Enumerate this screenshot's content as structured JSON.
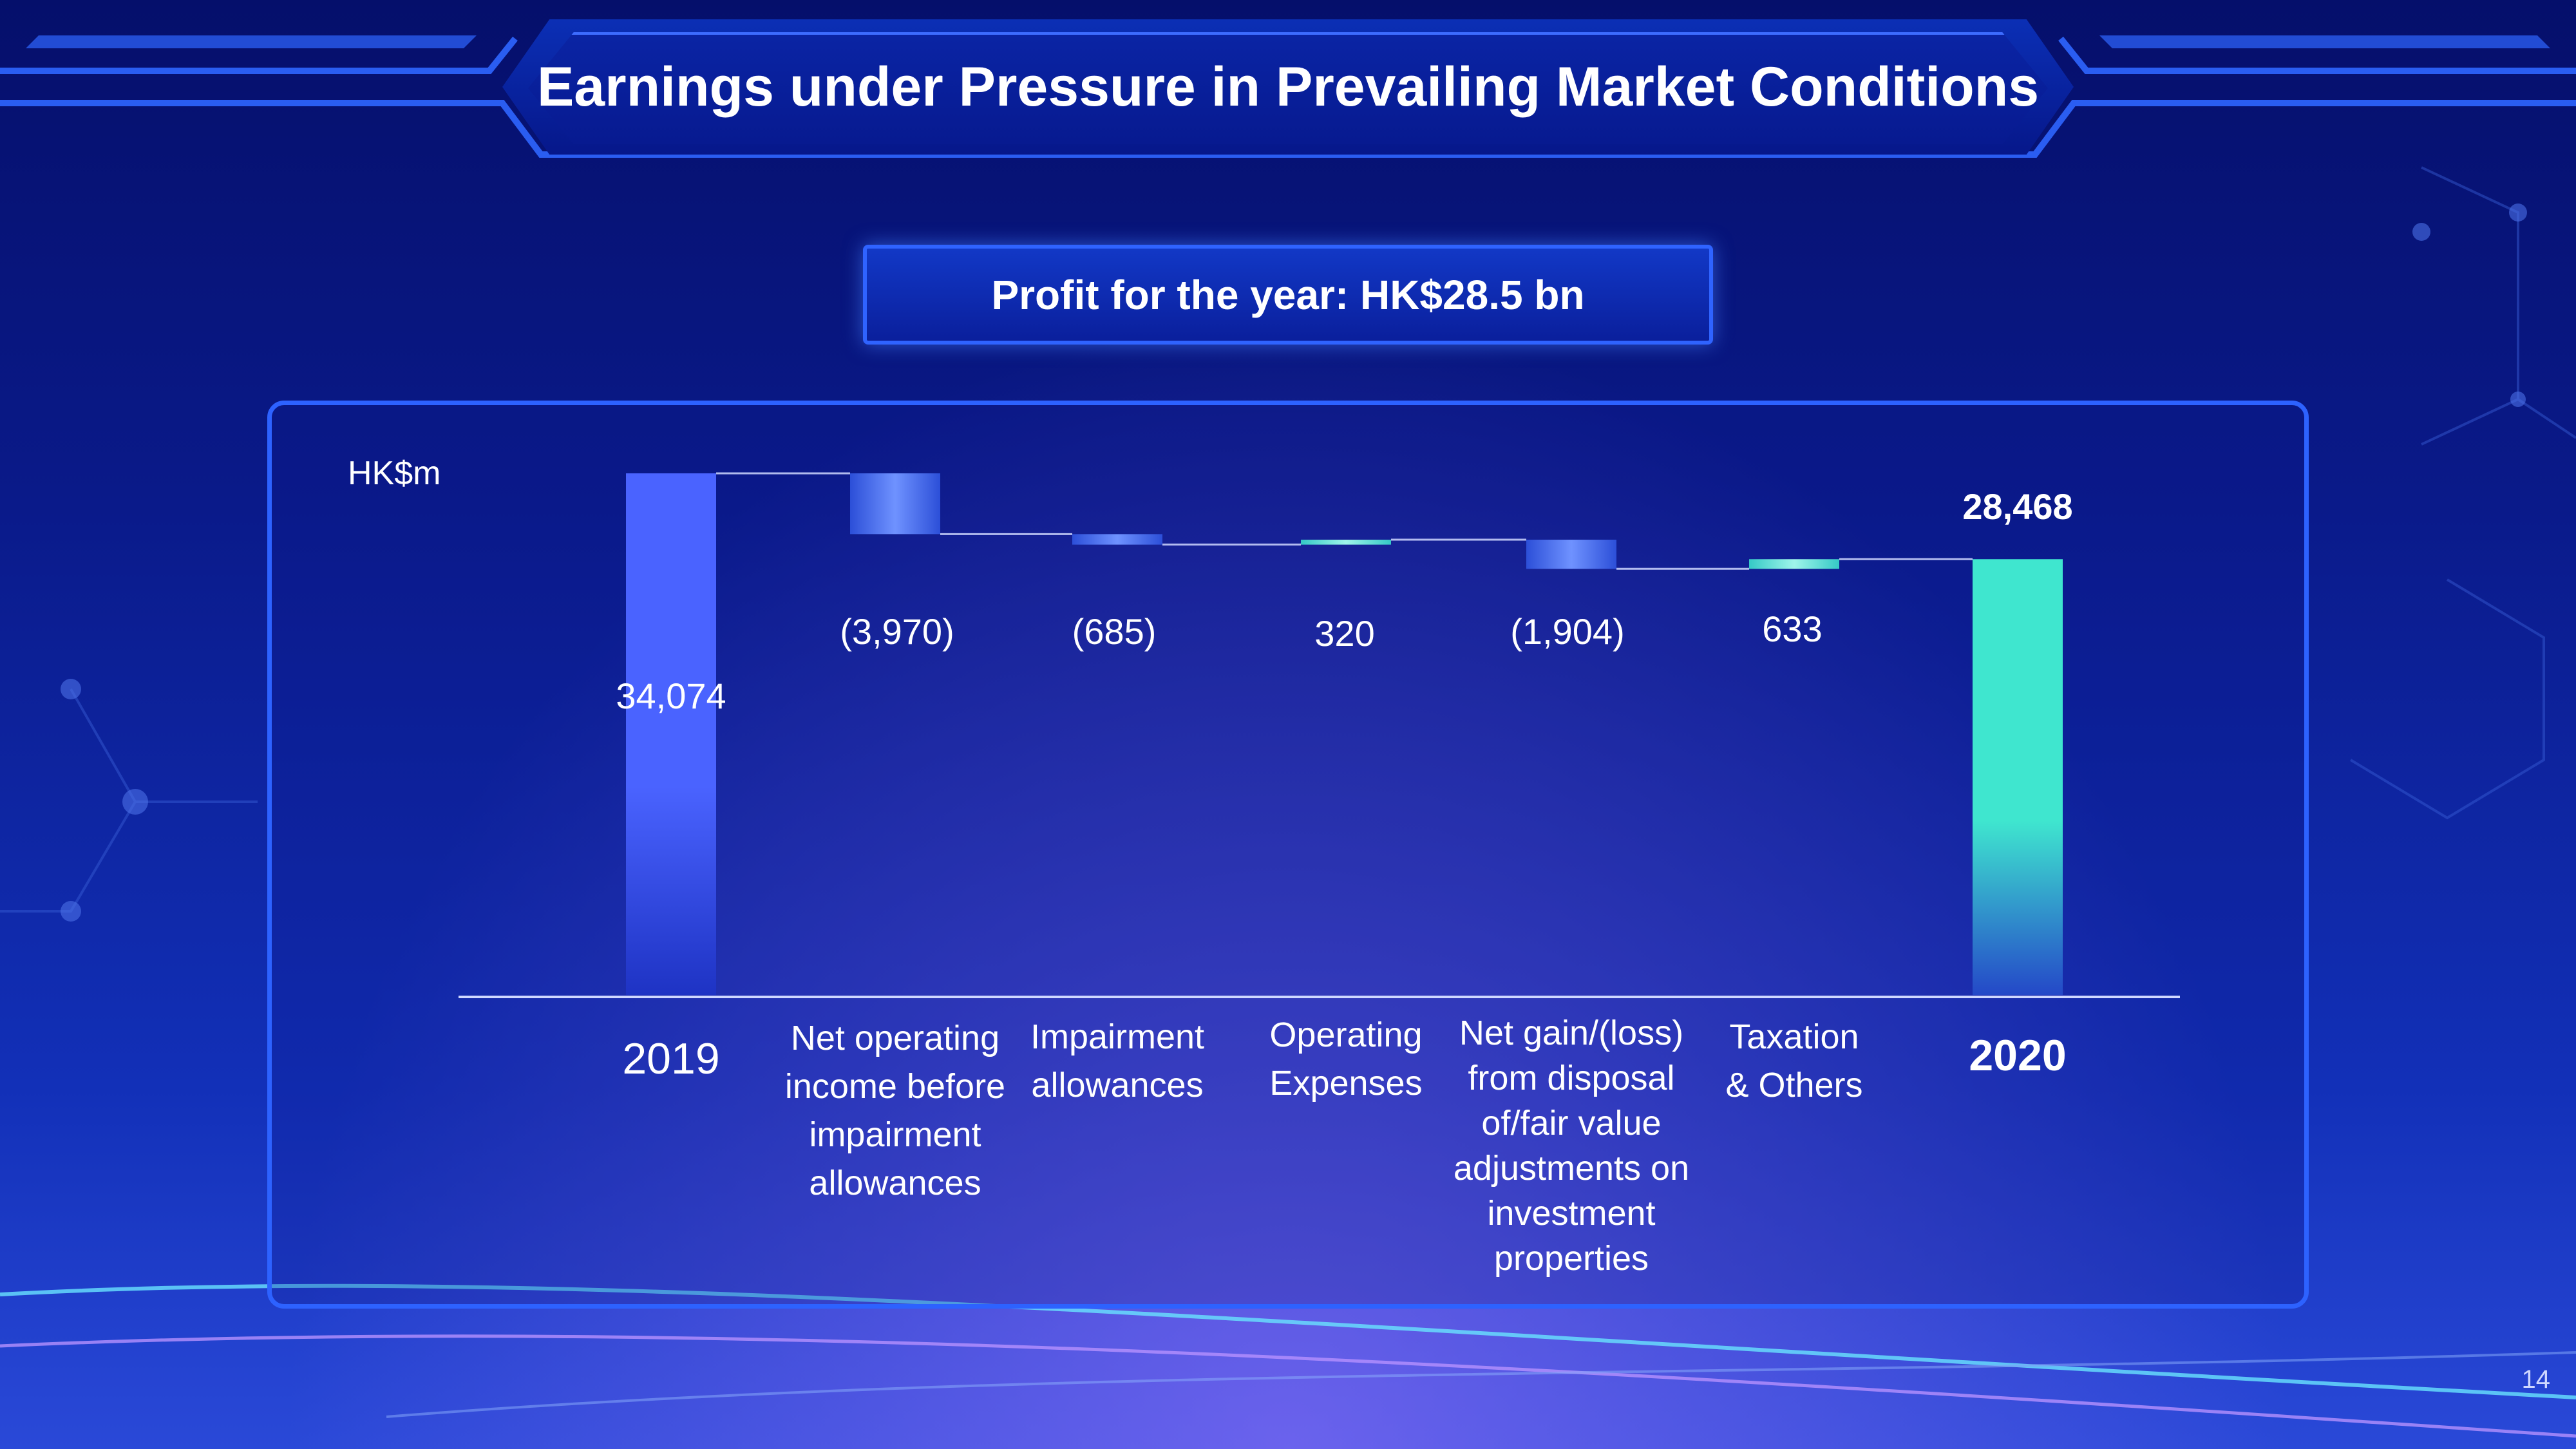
{
  "page": {
    "title": "Earnings under Pressure in Prevailing Market Conditions",
    "subtitle": "Profit for the year: HK$28.5 bn",
    "page_number": "14"
  },
  "chart_data": {
    "type": "waterfall",
    "unit_label": "HK$m",
    "categories": [
      "2019",
      "Net operating income before impairment allowances",
      "Impairment allowances",
      "Operating Expenses",
      "Net gain/(loss) from disposal of/fair value adjustments on investment properties",
      "Taxation & Others",
      "2020"
    ],
    "category_lines": [
      [
        "2019"
      ],
      [
        "Net operating",
        "income before",
        "impairment",
        "allowances"
      ],
      [
        "Impairment",
        "allowances"
      ],
      [
        "Operating",
        "Expenses"
      ],
      [
        "Net gain/(loss)",
        "from disposal",
        "of/fair value",
        "adjustments on",
        "investment",
        "properties"
      ],
      [
        "Taxation",
        "& Others"
      ],
      [
        "2020"
      ]
    ],
    "values": [
      34074,
      -3970,
      -685,
      320,
      -1904,
      633,
      28468
    ],
    "value_labels": [
      "34,074",
      "(3,970)",
      "(685)",
      "320",
      "(1,904)",
      "633",
      "28,468"
    ],
    "kinds": [
      "total",
      "delta",
      "delta",
      "delta",
      "delta",
      "delta",
      "total"
    ],
    "ylim": [
      0,
      34074
    ],
    "colors": {
      "total_2019": "#4a63ff",
      "total_2020": "#3fe6cf",
      "negative": "#4a73f0",
      "positive": "#57e8d2",
      "connector": "#cfd8ff",
      "axis": "#cfd8ff"
    }
  }
}
